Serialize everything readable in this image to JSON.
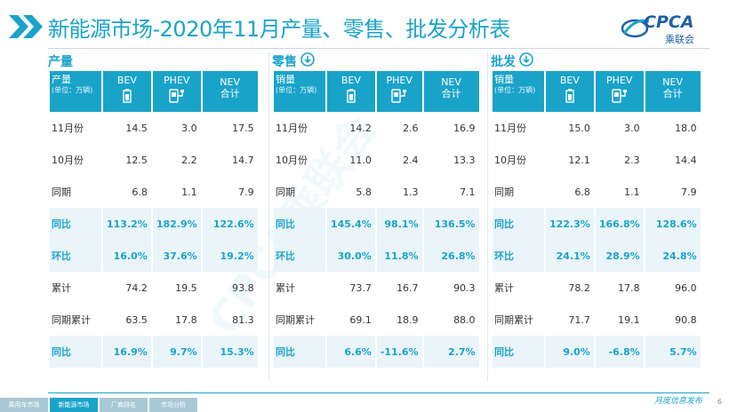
{
  "header": {
    "title": "新能源市场-2020年11月产量、零售、批发分析表",
    "logo_text": "CPCA",
    "logo_sub": "乘联会",
    "watermark": "CPCA乘联会"
  },
  "colors": {
    "accent": "#1aa3c9",
    "logo": "#1f5fa8",
    "highlight_row": "#eaf5fa"
  },
  "columns": {
    "bev": "BEV",
    "phev": "PHEV",
    "nev_line1": "NEV",
    "nev_line2": "合计",
    "unit": "(单位：万辆)"
  },
  "panels": [
    {
      "title": "产量",
      "corner": "产量",
      "has_icon": false,
      "rows": [
        {
          "label": "11月份",
          "bev": "14.5",
          "phev": "3.0",
          "nev": "17.5",
          "hl": false
        },
        {
          "label": "10月份",
          "bev": "12.5",
          "phev": "2.2",
          "nev": "14.7",
          "hl": false
        },
        {
          "label": "同期",
          "bev": "6.8",
          "phev": "1.1",
          "nev": "7.9",
          "hl": false
        },
        {
          "label": "同比",
          "bev": "113.2%",
          "phev": "182.9%",
          "nev": "122.6%",
          "hl": true
        },
        {
          "label": "环比",
          "bev": "16.0%",
          "phev": "37.6%",
          "nev": "19.2%",
          "hl": true
        },
        {
          "label": "累计",
          "bev": "74.2",
          "phev": "19.5",
          "nev": "93.8",
          "hl": false
        },
        {
          "label": "同期累计",
          "bev": "63.5",
          "phev": "17.8",
          "nev": "81.3",
          "hl": false
        },
        {
          "label": "同比",
          "bev": "16.9%",
          "phev": "9.7%",
          "nev": "15.3%",
          "hl": true
        }
      ]
    },
    {
      "title": "零售",
      "corner": "销量",
      "has_icon": true,
      "rows": [
        {
          "label": "11月份",
          "bev": "14.2",
          "phev": "2.6",
          "nev": "16.9",
          "hl": false
        },
        {
          "label": "10月份",
          "bev": "11.0",
          "phev": "2.4",
          "nev": "13.3",
          "hl": false
        },
        {
          "label": "同期",
          "bev": "5.8",
          "phev": "1.3",
          "nev": "7.1",
          "hl": false
        },
        {
          "label": "同比",
          "bev": "145.4%",
          "phev": "98.1%",
          "nev": "136.5%",
          "hl": true
        },
        {
          "label": "环比",
          "bev": "30.0%",
          "phev": "11.8%",
          "nev": "26.8%",
          "hl": true
        },
        {
          "label": "累计",
          "bev": "73.7",
          "phev": "16.7",
          "nev": "90.3",
          "hl": false
        },
        {
          "label": "同期累计",
          "bev": "69.1",
          "phev": "18.9",
          "nev": "88.0",
          "hl": false
        },
        {
          "label": "同比",
          "bev": "6.6%",
          "phev": "-11.6%",
          "nev": "2.7%",
          "hl": true
        }
      ]
    },
    {
      "title": "批发",
      "corner": "销量",
      "has_icon": true,
      "rows": [
        {
          "label": "11月份",
          "bev": "15.0",
          "phev": "3.0",
          "nev": "18.0",
          "hl": false
        },
        {
          "label": "10月份",
          "bev": "12.1",
          "phev": "2.3",
          "nev": "14.4",
          "hl": false
        },
        {
          "label": "同期",
          "bev": "6.8",
          "phev": "1.1",
          "nev": "7.9",
          "hl": false
        },
        {
          "label": "同比",
          "bev": "122.3%",
          "phev": "166.8%",
          "nev": "128.6%",
          "hl": true
        },
        {
          "label": "环比",
          "bev": "24.1%",
          "phev": "28.9%",
          "nev": "24.8%",
          "hl": true
        },
        {
          "label": "累计",
          "bev": "78.2",
          "phev": "17.8",
          "nev": "96.0",
          "hl": false
        },
        {
          "label": "同期累计",
          "bev": "71.7",
          "phev": "19.1",
          "nev": "90.8",
          "hl": false
        },
        {
          "label": "同比",
          "bev": "9.0%",
          "phev": "-6.8%",
          "nev": "5.7%",
          "hl": true
        }
      ]
    }
  ],
  "footer": {
    "tabs": [
      "乘用车市场",
      "新能源市场",
      "厂商排名",
      "市场分析"
    ],
    "active_tab": 1,
    "note": "月度信息发布",
    "page": "6"
  }
}
